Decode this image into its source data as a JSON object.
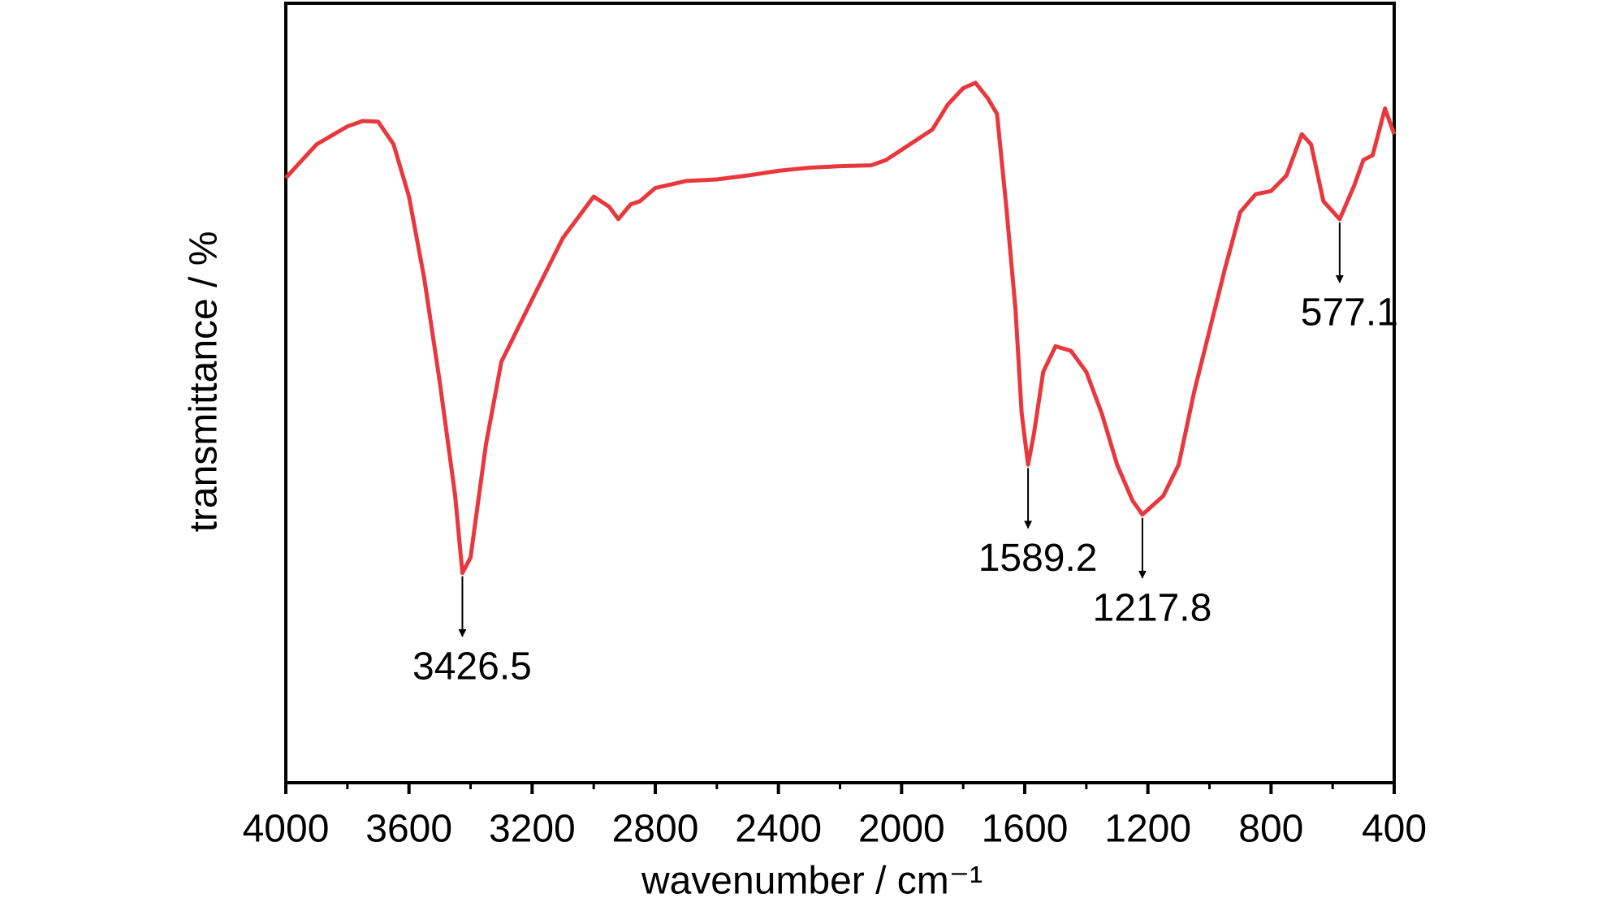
{
  "chart_data": {
    "type": "line",
    "xlabel": "wavenumber / cm⁻¹",
    "ylabel": "transmittance / %",
    "x": [
      4000,
      3900,
      3800,
      3750,
      3700,
      3650,
      3600,
      3550,
      3500,
      3450,
      3426.5,
      3400,
      3350,
      3300,
      3200,
      3100,
      3000,
      2950,
      2920,
      2880,
      2850,
      2800,
      2700,
      2600,
      2500,
      2400,
      2300,
      2200,
      2100,
      2050,
      2000,
      1950,
      1900,
      1850,
      1800,
      1760,
      1720,
      1690,
      1660,
      1630,
      1610,
      1589.2,
      1570,
      1540,
      1500,
      1450,
      1400,
      1350,
      1300,
      1250,
      1217.8,
      1150,
      1100,
      1050,
      1000,
      950,
      900,
      850,
      800,
      750,
      700,
      670,
      630,
      577.1,
      530,
      500,
      470,
      430,
      400
    ],
    "series": [
      {
        "name": "transmittance",
        "color": "#e8383d",
        "values": [
          77.6,
          81.9,
          84.2,
          84.9,
          84.8,
          81.9,
          75.2,
          64.6,
          51.4,
          36.8,
          26.9,
          28.9,
          43.4,
          54.0,
          62.0,
          69.9,
          75.2,
          73.9,
          72.3,
          74.2,
          74.6,
          76.3,
          77.2,
          77.4,
          77.9,
          78.5,
          78.9,
          79.1,
          79.2,
          79.9,
          81.2,
          82.5,
          83.8,
          87.0,
          89.1,
          89.8,
          87.8,
          85.8,
          73.9,
          60.7,
          47.4,
          40.8,
          44.8,
          52.7,
          56.0,
          55.4,
          52.7,
          47.4,
          40.8,
          36.2,
          34.4,
          36.8,
          40.8,
          50.1,
          58.0,
          65.9,
          73.2,
          75.5,
          75.9,
          77.9,
          83.2,
          81.9,
          74.6,
          72.3,
          76.6,
          79.9,
          80.5,
          86.5,
          83.2
        ]
      }
    ],
    "xlim": [
      4000,
      400
    ],
    "ylim": [
      0,
      100
    ],
    "xticks": [
      4000,
      3600,
      3200,
      2800,
      2400,
      2000,
      1600,
      1200,
      800,
      400
    ],
    "xminorticks": [
      3800,
      3400,
      3000,
      2600,
      2200,
      1800,
      1400,
      1000,
      600
    ],
    "annotations": [
      {
        "label": "3426.5",
        "x": 3426.5
      },
      {
        "label": "1589.2",
        "x": 1589.2
      },
      {
        "label": "1217.8",
        "x": 1217.8
      },
      {
        "label": "577.1",
        "x": 577.1
      }
    ]
  }
}
